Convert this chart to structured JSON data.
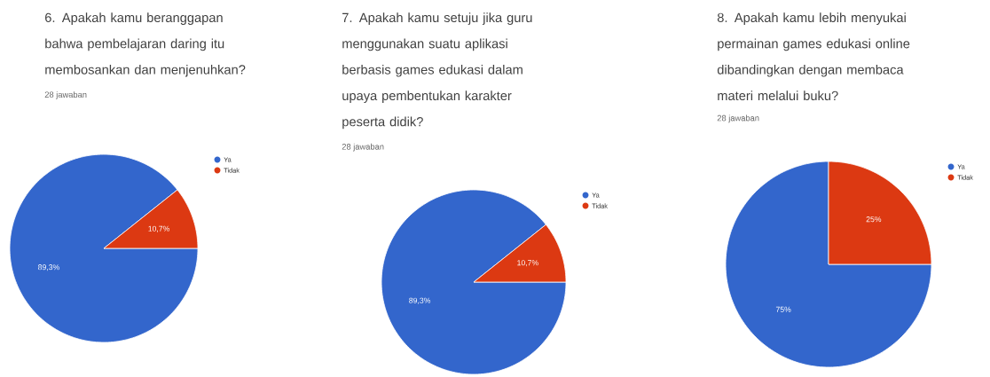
{
  "chart_data": [
    {
      "type": "pie",
      "title": "6. Apakah kamu beranggapan bahwa pembelajaran daring itu membosankan dan menjenuhkan?",
      "subtitle": "28 jawaban",
      "categories": [
        "Ya",
        "Tidak"
      ],
      "values": [
        89.3,
        10.7
      ],
      "colors": [
        "#3366cc",
        "#dc3912"
      ],
      "value_labels": [
        "89,3%",
        "10,7%"
      ],
      "legend": "top right"
    },
    {
      "type": "pie",
      "title": "7. Apakah kamu setuju jika guru menggunakan suatu aplikasi berbasis games edukasi dalam upaya pembentukan karakter peserta didik?",
      "subtitle": "28 jawaban",
      "categories": [
        "Ya",
        "Tidak"
      ],
      "values": [
        89.3,
        10.7
      ],
      "colors": [
        "#3366cc",
        "#dc3912"
      ],
      "value_labels": [
        "89,3%",
        "10,7%"
      ],
      "legend": "top right"
    },
    {
      "type": "pie",
      "title": "8. Apakah kamu lebih menyukai permainan games edukasi online dibandingkan dengan membaca materi melalui buku?",
      "subtitle": "28 jawaban",
      "categories": [
        "Ya",
        "Tidak"
      ],
      "values": [
        75,
        25
      ],
      "colors": [
        "#3366cc",
        "#dc3912"
      ],
      "value_labels": [
        "75%",
        "25%"
      ],
      "legend": "top right"
    }
  ]
}
